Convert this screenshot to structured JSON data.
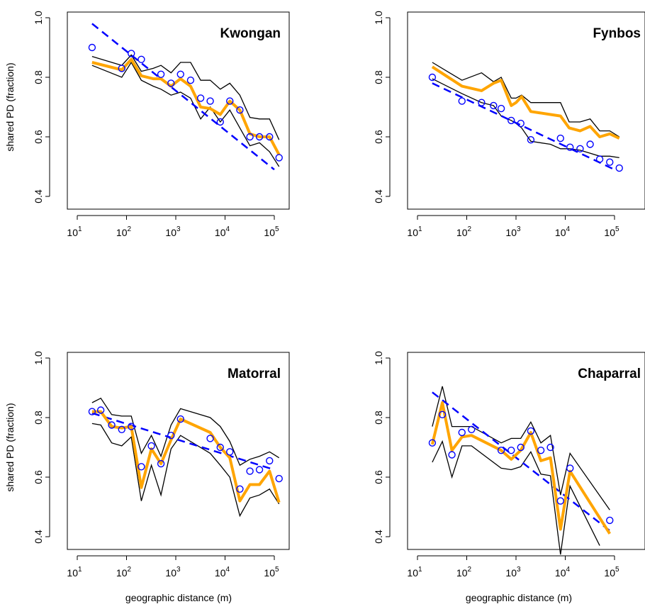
{
  "figure": {
    "ylabel": "shared PD (fraction)",
    "xlabel": "geographic distance (m)",
    "colors": {
      "mean": "#FFA500",
      "observed": "#0000FF",
      "fit": "#0000FF",
      "envelope": "#000000"
    }
  },
  "chart_data": [
    {
      "type": "line",
      "title": "Kwongan",
      "ylim": [
        0.4,
        1.0
      ],
      "yticks": [
        0.4,
        0.6,
        0.8,
        1.0
      ],
      "xscale": "log",
      "xticks": [
        10,
        100,
        1000,
        10000,
        100000
      ],
      "xlabel": "",
      "ylabel": "shared PD (fraction)",
      "series": [
        {
          "role": "upper",
          "x": [
            20,
            80,
            125,
            200,
            350,
            500,
            800,
            1250,
            2000,
            3200,
            5000,
            8000,
            12500,
            20000,
            32000,
            50000,
            80000,
            125000
          ],
          "y": [
            0.87,
            0.84,
            0.875,
            0.82,
            0.83,
            0.84,
            0.815,
            0.85,
            0.85,
            0.79,
            0.79,
            0.76,
            0.78,
            0.74,
            0.665,
            0.66,
            0.66,
            0.59
          ]
        },
        {
          "role": "lower",
          "x": [
            20,
            80,
            125,
            200,
            350,
            500,
            800,
            1250,
            2000,
            3200,
            5000,
            8000,
            12500,
            20000,
            32000,
            50000,
            80000,
            125000
          ],
          "y": [
            0.84,
            0.8,
            0.85,
            0.79,
            0.77,
            0.76,
            0.74,
            0.75,
            0.73,
            0.66,
            0.7,
            0.65,
            0.69,
            0.63,
            0.57,
            0.58,
            0.55,
            0.5
          ]
        },
        {
          "role": "mean",
          "x": [
            20,
            80,
            125,
            200,
            350,
            500,
            800,
            1250,
            2000,
            3200,
            5000,
            8000,
            12500,
            20000,
            32000,
            50000,
            80000,
            125000
          ],
          "y": [
            0.85,
            0.825,
            0.86,
            0.805,
            0.795,
            0.795,
            0.77,
            0.795,
            0.77,
            0.7,
            0.695,
            0.675,
            0.72,
            0.69,
            0.61,
            0.6,
            0.6,
            0.54
          ]
        },
        {
          "role": "observed",
          "x": [
            20,
            80,
            125,
            200,
            500,
            800,
            1250,
            2000,
            3200,
            5000,
            8000,
            12500,
            20000,
            32000,
            50000,
            80000,
            125000
          ],
          "y": [
            0.9,
            0.83,
            0.88,
            0.86,
            0.81,
            0.78,
            0.81,
            0.79,
            0.73,
            0.72,
            0.65,
            0.72,
            0.69,
            0.6,
            0.6,
            0.6,
            0.53
          ]
        },
        {
          "role": "fit",
          "x": [
            20,
            100000
          ],
          "y": [
            0.98,
            0.49
          ]
        }
      ]
    },
    {
      "type": "line",
      "title": "Fynbos",
      "ylim": [
        0.4,
        1.0
      ],
      "yticks": [
        0.4,
        0.6,
        0.8,
        1.0
      ],
      "xscale": "log",
      "xticks": [
        10,
        100,
        1000,
        10000,
        100000
      ],
      "xlabel": "",
      "ylabel": "",
      "series": [
        {
          "role": "upper",
          "x": [
            20,
            80,
            200,
            350,
            500,
            800,
            1000,
            1300,
            2000,
            5000,
            8000,
            12000,
            20000,
            32000,
            50000,
            80000,
            125000
          ],
          "y": [
            0.85,
            0.79,
            0.815,
            0.785,
            0.8,
            0.73,
            0.73,
            0.74,
            0.715,
            0.715,
            0.715,
            0.65,
            0.65,
            0.66,
            0.62,
            0.62,
            0.6
          ]
        },
        {
          "role": "lower",
          "x": [
            20,
            80,
            200,
            350,
            500,
            800,
            1000,
            1300,
            2000,
            5000,
            8000,
            12000,
            20000,
            32000,
            50000,
            80000,
            125000
          ],
          "y": [
            0.795,
            0.745,
            0.715,
            0.705,
            0.67,
            0.655,
            0.645,
            0.63,
            0.585,
            0.575,
            0.56,
            0.56,
            0.555,
            0.545,
            0.535,
            0.535,
            0.53
          ]
        },
        {
          "role": "mean",
          "x": [
            20,
            80,
            200,
            350,
            500,
            800,
            1000,
            1300,
            2000,
            5000,
            8000,
            12000,
            20000,
            32000,
            50000,
            80000,
            125000
          ],
          "y": [
            0.835,
            0.77,
            0.755,
            0.78,
            0.79,
            0.705,
            0.715,
            0.735,
            0.685,
            0.675,
            0.67,
            0.63,
            0.62,
            0.635,
            0.6,
            0.61,
            0.595
          ]
        },
        {
          "role": "observed",
          "x": [
            20,
            80,
            200,
            350,
            500,
            800,
            1250,
            2000,
            8000,
            12500,
            20000,
            32000,
            50000,
            80000,
            125000
          ],
          "y": [
            0.8,
            0.72,
            0.715,
            0.705,
            0.695,
            0.655,
            0.645,
            0.59,
            0.595,
            0.565,
            0.56,
            0.575,
            0.525,
            0.515,
            0.495
          ]
        },
        {
          "role": "fit",
          "x": [
            20,
            100000
          ],
          "y": [
            0.78,
            0.49
          ]
        }
      ]
    },
    {
      "type": "line",
      "title": "Matorral",
      "ylim": [
        0.4,
        1.0
      ],
      "yticks": [
        0.4,
        0.6,
        0.8,
        1.0
      ],
      "xscale": "log",
      "xticks": [
        10,
        100,
        1000,
        10000,
        100000
      ],
      "xlabel": "geographic distance (m)",
      "ylabel": "shared PD (fraction)",
      "series": [
        {
          "role": "upper",
          "x": [
            20,
            30,
            50,
            80,
            125,
            200,
            320,
            500,
            800,
            1250,
            5000,
            8000,
            12500,
            20000,
            32000,
            50000,
            80000,
            125000
          ],
          "y": [
            0.85,
            0.865,
            0.81,
            0.805,
            0.805,
            0.68,
            0.74,
            0.67,
            0.775,
            0.83,
            0.8,
            0.77,
            0.72,
            0.64,
            0.66,
            0.67,
            0.685,
            0.665
          ]
        },
        {
          "role": "lower",
          "x": [
            20,
            30,
            50,
            80,
            125,
            200,
            320,
            500,
            800,
            1250,
            5000,
            8000,
            12500,
            20000,
            32000,
            50000,
            80000,
            125000
          ],
          "y": [
            0.78,
            0.775,
            0.715,
            0.705,
            0.735,
            0.52,
            0.64,
            0.54,
            0.695,
            0.74,
            0.68,
            0.64,
            0.6,
            0.47,
            0.53,
            0.54,
            0.56,
            0.51
          ]
        },
        {
          "role": "mean",
          "x": [
            20,
            30,
            50,
            80,
            125,
            200,
            320,
            500,
            800,
            1250,
            5000,
            8000,
            12500,
            20000,
            32000,
            50000,
            80000,
            125000
          ],
          "y": [
            0.82,
            0.82,
            0.77,
            0.765,
            0.77,
            0.565,
            0.695,
            0.645,
            0.725,
            0.795,
            0.75,
            0.7,
            0.665,
            0.52,
            0.575,
            0.575,
            0.62,
            0.515
          ]
        },
        {
          "role": "observed",
          "x": [
            20,
            30,
            50,
            80,
            125,
            200,
            320,
            500,
            800,
            1250,
            5000,
            8000,
            12500,
            20000,
            32000,
            50000,
            80000,
            125000
          ],
          "y": [
            0.82,
            0.825,
            0.775,
            0.76,
            0.77,
            0.635,
            0.705,
            0.645,
            0.74,
            0.795,
            0.73,
            0.7,
            0.685,
            0.56,
            0.62,
            0.625,
            0.655,
            0.595
          ]
        },
        {
          "role": "fit",
          "x": [
            20,
            100000
          ],
          "y": [
            0.815,
            0.625
          ]
        }
      ]
    },
    {
      "type": "line",
      "title": "Chaparral",
      "ylim": [
        0.4,
        1.0
      ],
      "yticks": [
        0.4,
        0.6,
        0.8,
        1.0
      ],
      "xscale": "log",
      "xticks": [
        10,
        100,
        1000,
        10000,
        100000
      ],
      "xlabel": "geographic distance (m)",
      "ylabel": "",
      "series": [
        {
          "role": "upper",
          "x": [
            20,
            32,
            50,
            80,
            125,
            500,
            800,
            1250,
            2000,
            3200,
            5000,
            8000,
            12500,
            80000
          ],
          "y": [
            0.77,
            0.905,
            0.77,
            0.77,
            0.77,
            0.715,
            0.73,
            0.73,
            0.785,
            0.715,
            0.74,
            0.54,
            0.68,
            0.49
          ]
        },
        {
          "role": "lower",
          "x": [
            20,
            32,
            50,
            80,
            125,
            500,
            800,
            1250,
            2000,
            3200,
            5000,
            8000,
            12500,
            50000
          ],
          "y": [
            0.65,
            0.72,
            0.6,
            0.705,
            0.705,
            0.63,
            0.625,
            0.635,
            0.685,
            0.61,
            0.605,
            0.34,
            0.57,
            0.37
          ]
        },
        {
          "role": "mean",
          "x": [
            20,
            32,
            50,
            80,
            125,
            500,
            800,
            1250,
            2000,
            3200,
            5000,
            8000,
            12500,
            80000
          ],
          "y": [
            0.71,
            0.85,
            0.69,
            0.735,
            0.74,
            0.69,
            0.66,
            0.69,
            0.75,
            0.655,
            0.665,
            0.425,
            0.62,
            0.41
          ]
        },
        {
          "role": "observed",
          "x": [
            20,
            32,
            50,
            80,
            125,
            500,
            800,
            1250,
            2000,
            3200,
            5000,
            8000,
            12500,
            80000
          ],
          "y": [
            0.715,
            0.81,
            0.675,
            0.75,
            0.76,
            0.69,
            0.69,
            0.7,
            0.755,
            0.69,
            0.7,
            0.52,
            0.63,
            0.455
          ]
        },
        {
          "role": "fit",
          "x": [
            20,
            80000
          ],
          "y": [
            0.885,
            0.42
          ]
        }
      ]
    }
  ]
}
